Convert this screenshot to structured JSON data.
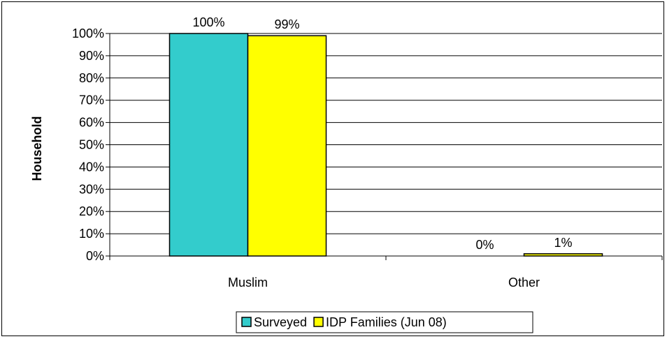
{
  "chart_data": {
    "type": "bar",
    "title": "",
    "xlabel": "",
    "ylabel": "Household",
    "categories": [
      "Muslim",
      "Other"
    ],
    "series": [
      {
        "name": "Surveyed",
        "values": [
          100,
          0
        ],
        "labels": [
          "100%",
          "0%"
        ],
        "color": "#33cccc"
      },
      {
        "name": "IDP Families (Jun 08)",
        "values": [
          99,
          1
        ],
        "labels": [
          "99%",
          "1%"
        ],
        "color": "#ffff00"
      }
    ],
    "ylim": [
      0,
      100
    ],
    "yticks": [
      "0%",
      "10%",
      "20%",
      "30%",
      "40%",
      "50%",
      "60%",
      "70%",
      "80%",
      "90%",
      "100%"
    ],
    "grid": true,
    "legend_position": "bottom"
  }
}
